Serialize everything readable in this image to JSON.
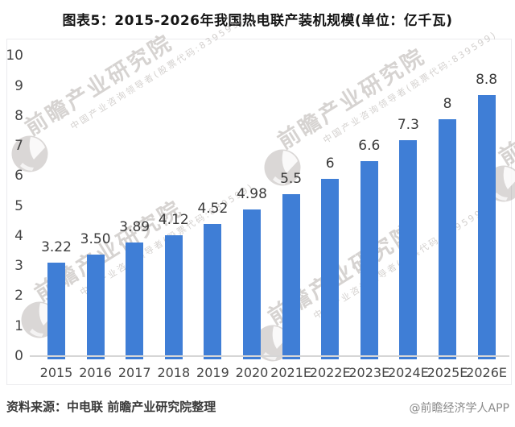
{
  "page": {
    "title": "图表5：2015-2026年我国热电联产装机规模(单位：亿千瓦)",
    "footer": {
      "source": "资料来源：中电联 前瞻产业研究院整理",
      "credit": "@前瞻经济学人APP"
    }
  },
  "watermark": {
    "main_text": "前瞻产业研究院",
    "sub_text": "中国产业咨询领导者(股票代码:839599)",
    "icon": "globe-icon"
  },
  "colors": {
    "bar": "#3f7ed6",
    "axis_line": "#d6d6d6",
    "tick_label": "#454545",
    "value_label": "#3a3a3a",
    "title": "#151515",
    "source_text": "#3a3a3a",
    "credit_text": "#8a8a8a",
    "watermark": "#9e9692",
    "panel_border": "#ebebee"
  },
  "chart_data": {
    "type": "bar",
    "title": "2015-2026年我国热电联产装机规模",
    "unit": "亿千瓦",
    "categories": [
      "2015",
      "2016",
      "2017",
      "2018",
      "2019",
      "2020",
      "2021E",
      "2022E",
      "2023E",
      "2024E",
      "2025E",
      "2026E"
    ],
    "values": [
      3.22,
      3.5,
      3.89,
      4.12,
      4.52,
      4.98,
      5.5,
      6,
      6.6,
      7.3,
      8,
      8.8
    ],
    "value_labels": [
      "3.22",
      "3.50",
      "3.89",
      "4.12",
      "4.52",
      "4.98",
      "5.5",
      "6",
      "6.6",
      "7.3",
      "8",
      "8.8"
    ],
    "xlabel": "",
    "ylabel": "",
    "ylim": [
      0,
      10
    ],
    "ytick_step": 1,
    "grid": false,
    "legend": false
  }
}
